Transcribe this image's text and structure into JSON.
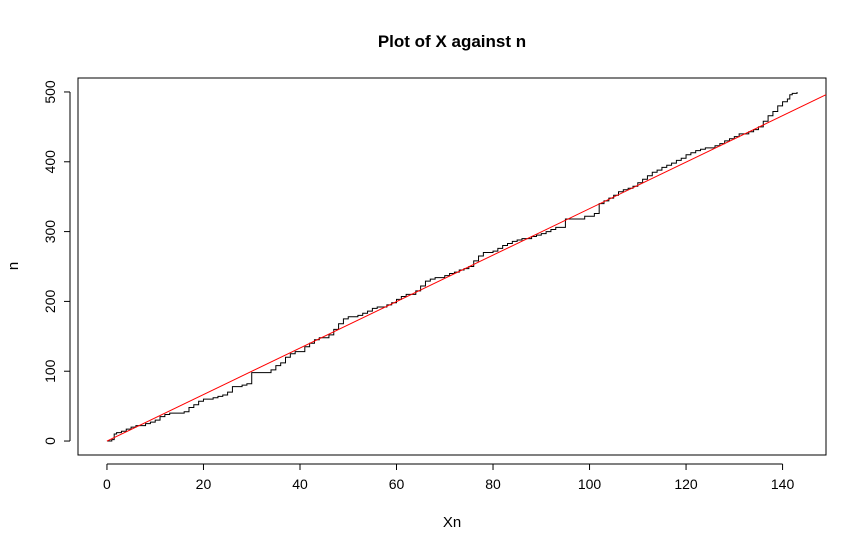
{
  "chart_data": {
    "type": "line",
    "title": "Plot of X against n",
    "xlabel": "Xn",
    "ylabel": "n",
    "xlim": [
      -6,
      149
    ],
    "ylim": [
      -20,
      520
    ],
    "x_ticks": [
      0,
      20,
      40,
      60,
      80,
      100,
      120,
      140
    ],
    "y_ticks": [
      0,
      100,
      200,
      300,
      400,
      500
    ],
    "grid": false,
    "legend": "none",
    "series": [
      {
        "style": "step",
        "color": "#000000",
        "points": [
          [
            0,
            0
          ],
          [
            1,
            2
          ],
          [
            1.5,
            10
          ],
          [
            2,
            12
          ],
          [
            3,
            14
          ],
          [
            4,
            17
          ],
          [
            5,
            20
          ],
          [
            6,
            22
          ],
          [
            8,
            25
          ],
          [
            9,
            27
          ],
          [
            10,
            30
          ],
          [
            11,
            35
          ],
          [
            12,
            38
          ],
          [
            13,
            40
          ],
          [
            16,
            42
          ],
          [
            17,
            48
          ],
          [
            18,
            52
          ],
          [
            19,
            57
          ],
          [
            20,
            60
          ],
          [
            22,
            62
          ],
          [
            23,
            64
          ],
          [
            24,
            66
          ],
          [
            25,
            70
          ],
          [
            26,
            78
          ],
          [
            28,
            80
          ],
          [
            29,
            82
          ],
          [
            30,
            98
          ],
          [
            34,
            102
          ],
          [
            35,
            108
          ],
          [
            36,
            112
          ],
          [
            37,
            120
          ],
          [
            38,
            125
          ],
          [
            39,
            128
          ],
          [
            41,
            135
          ],
          [
            42,
            140
          ],
          [
            43,
            145
          ],
          [
            44,
            148
          ],
          [
            46,
            152
          ],
          [
            47,
            160
          ],
          [
            48,
            168
          ],
          [
            49,
            175
          ],
          [
            50,
            178
          ],
          [
            52,
            180
          ],
          [
            53,
            183
          ],
          [
            54,
            186
          ],
          [
            55,
            190
          ],
          [
            56,
            192
          ],
          [
            58,
            195
          ],
          [
            59,
            198
          ],
          [
            60,
            203
          ],
          [
            61,
            207
          ],
          [
            62,
            210
          ],
          [
            64,
            215
          ],
          [
            65,
            222
          ],
          [
            66,
            229
          ],
          [
            67,
            232
          ],
          [
            68,
            234
          ],
          [
            70,
            237
          ],
          [
            71,
            240
          ],
          [
            72,
            242
          ],
          [
            73,
            245
          ],
          [
            74,
            247
          ],
          [
            75,
            250
          ],
          [
            76,
            258
          ],
          [
            77,
            265
          ],
          [
            78,
            270
          ],
          [
            80,
            272
          ],
          [
            81,
            276
          ],
          [
            82,
            280
          ],
          [
            83,
            283
          ],
          [
            84,
            286
          ],
          [
            85,
            288
          ],
          [
            86,
            290
          ],
          [
            88,
            293
          ],
          [
            89,
            295
          ],
          [
            90,
            297
          ],
          [
            91,
            300
          ],
          [
            92,
            303
          ],
          [
            93,
            306
          ],
          [
            95,
            318
          ],
          [
            99,
            322
          ],
          [
            101,
            326
          ],
          [
            102,
            340
          ],
          [
            103,
            344
          ],
          [
            104,
            348
          ],
          [
            105,
            352
          ],
          [
            106,
            357
          ],
          [
            107,
            360
          ],
          [
            108,
            362
          ],
          [
            109,
            365
          ],
          [
            110,
            370
          ],
          [
            111,
            375
          ],
          [
            112,
            380
          ],
          [
            113,
            385
          ],
          [
            114,
            388
          ],
          [
            115,
            392
          ],
          [
            116,
            395
          ],
          [
            117,
            398
          ],
          [
            118,
            402
          ],
          [
            119,
            405
          ],
          [
            120,
            410
          ],
          [
            121,
            413
          ],
          [
            122,
            416
          ],
          [
            123,
            418
          ],
          [
            124,
            420
          ],
          [
            126,
            423
          ],
          [
            127,
            426
          ],
          [
            128,
            430
          ],
          [
            129,
            433
          ],
          [
            130,
            436
          ],
          [
            131,
            440
          ],
          [
            133,
            443
          ],
          [
            134,
            446
          ],
          [
            135,
            450
          ],
          [
            136,
            458
          ],
          [
            137,
            466
          ],
          [
            138,
            472
          ],
          [
            139,
            480
          ],
          [
            140,
            486
          ],
          [
            141,
            490
          ],
          [
            141.5,
            496
          ],
          [
            142,
            498
          ],
          [
            143,
            500
          ]
        ]
      },
      {
        "style": "line",
        "color": "#ff0000",
        "points": [
          [
            0,
            0
          ],
          [
            149,
            496
          ]
        ]
      }
    ]
  }
}
